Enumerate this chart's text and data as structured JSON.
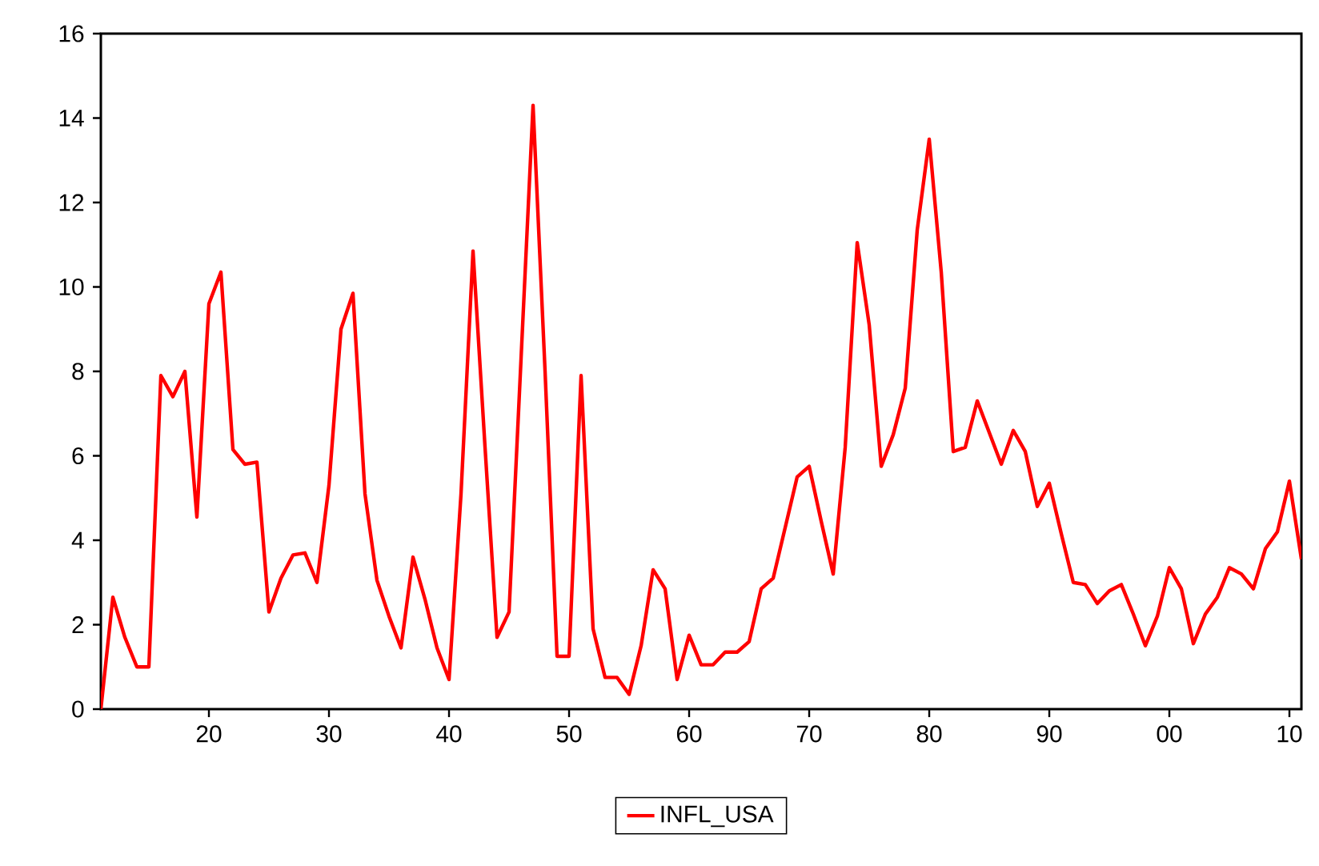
{
  "chart_data": {
    "type": "line",
    "x": [
      1911,
      1912,
      1913,
      1914,
      1915,
      1916,
      1917,
      1918,
      1919,
      1920,
      1921,
      1922,
      1923,
      1924,
      1925,
      1926,
      1927,
      1928,
      1929,
      1930,
      1931,
      1932,
      1933,
      1934,
      1935,
      1936,
      1937,
      1938,
      1939,
      1940,
      1941,
      1942,
      1943,
      1944,
      1945,
      1946,
      1947,
      1948,
      1949,
      1950,
      1951,
      1952,
      1953,
      1954,
      1955,
      1956,
      1957,
      1958,
      1959,
      1960,
      1961,
      1962,
      1963,
      1964,
      1965,
      1966,
      1967,
      1968,
      1969,
      1970,
      1971,
      1972,
      1973,
      1974,
      1975,
      1976,
      1977,
      1978,
      1979,
      1980,
      1981,
      1982,
      1983,
      1984,
      1985,
      1986,
      1987,
      1988,
      1989,
      1990,
      1991,
      1992,
      1993,
      1994,
      1995,
      1996,
      1997,
      1998,
      1999,
      2000,
      2001,
      2002,
      2003,
      2004,
      2005,
      2006,
      2007,
      2008,
      2009,
      2010,
      2011
    ],
    "series": [
      {
        "name": "INFL_USA",
        "color": "#ff0000",
        "values": [
          0,
          2.65,
          1.7,
          1.0,
          1.0,
          7.9,
          7.4,
          8.0,
          4.55,
          9.6,
          10.35,
          6.15,
          5.8,
          5.85,
          2.3,
          3.1,
          3.65,
          3.7,
          3.0,
          5.3,
          9.0,
          9.85,
          5.1,
          3.05,
          2.2,
          1.45,
          3.6,
          2.6,
          1.45,
          0.7,
          5.1,
          10.85,
          6.2,
          1.7,
          2.3,
          8.3,
          14.3,
          8.0,
          1.25,
          1.25,
          7.9,
          1.9,
          0.75,
          0.75,
          0.35,
          1.5,
          3.3,
          2.85,
          0.7,
          1.75,
          1.05,
          1.05,
          1.35,
          1.35,
          1.6,
          2.85,
          3.1,
          4.3,
          5.5,
          5.75,
          4.45,
          3.2,
          6.2,
          11.05,
          9.1,
          5.75,
          6.5,
          7.6,
          11.35,
          13.5,
          10.35,
          6.1,
          6.2,
          7.3,
          6.55,
          5.8,
          6.6,
          6.1,
          4.8,
          5.35,
          4.15,
          3.0,
          2.95,
          2.5,
          2.8,
          2.95,
          2.25,
          1.5,
          2.2,
          3.35,
          2.85,
          1.55,
          2.25,
          2.65,
          3.35,
          3.2,
          2.85,
          3.8,
          4.2,
          5.4,
          3.55
        ]
      }
    ],
    "xlim": [
      1911,
      2011
    ],
    "xticks": [
      {
        "value": 1920,
        "label": "20"
      },
      {
        "value": 1930,
        "label": "30"
      },
      {
        "value": 1940,
        "label": "40"
      },
      {
        "value": 1950,
        "label": "50"
      },
      {
        "value": 1960,
        "label": "60"
      },
      {
        "value": 1970,
        "label": "70"
      },
      {
        "value": 1980,
        "label": "80"
      },
      {
        "value": 1990,
        "label": "90"
      },
      {
        "value": 2000,
        "label": "00"
      },
      {
        "value": 2010,
        "label": "10"
      }
    ],
    "ylim": [
      0,
      16
    ],
    "yticks": [
      0,
      2,
      4,
      6,
      8,
      10,
      12,
      14,
      16
    ],
    "legend": "bottom",
    "grid": false,
    "marker": "none",
    "line_style": "solid"
  }
}
